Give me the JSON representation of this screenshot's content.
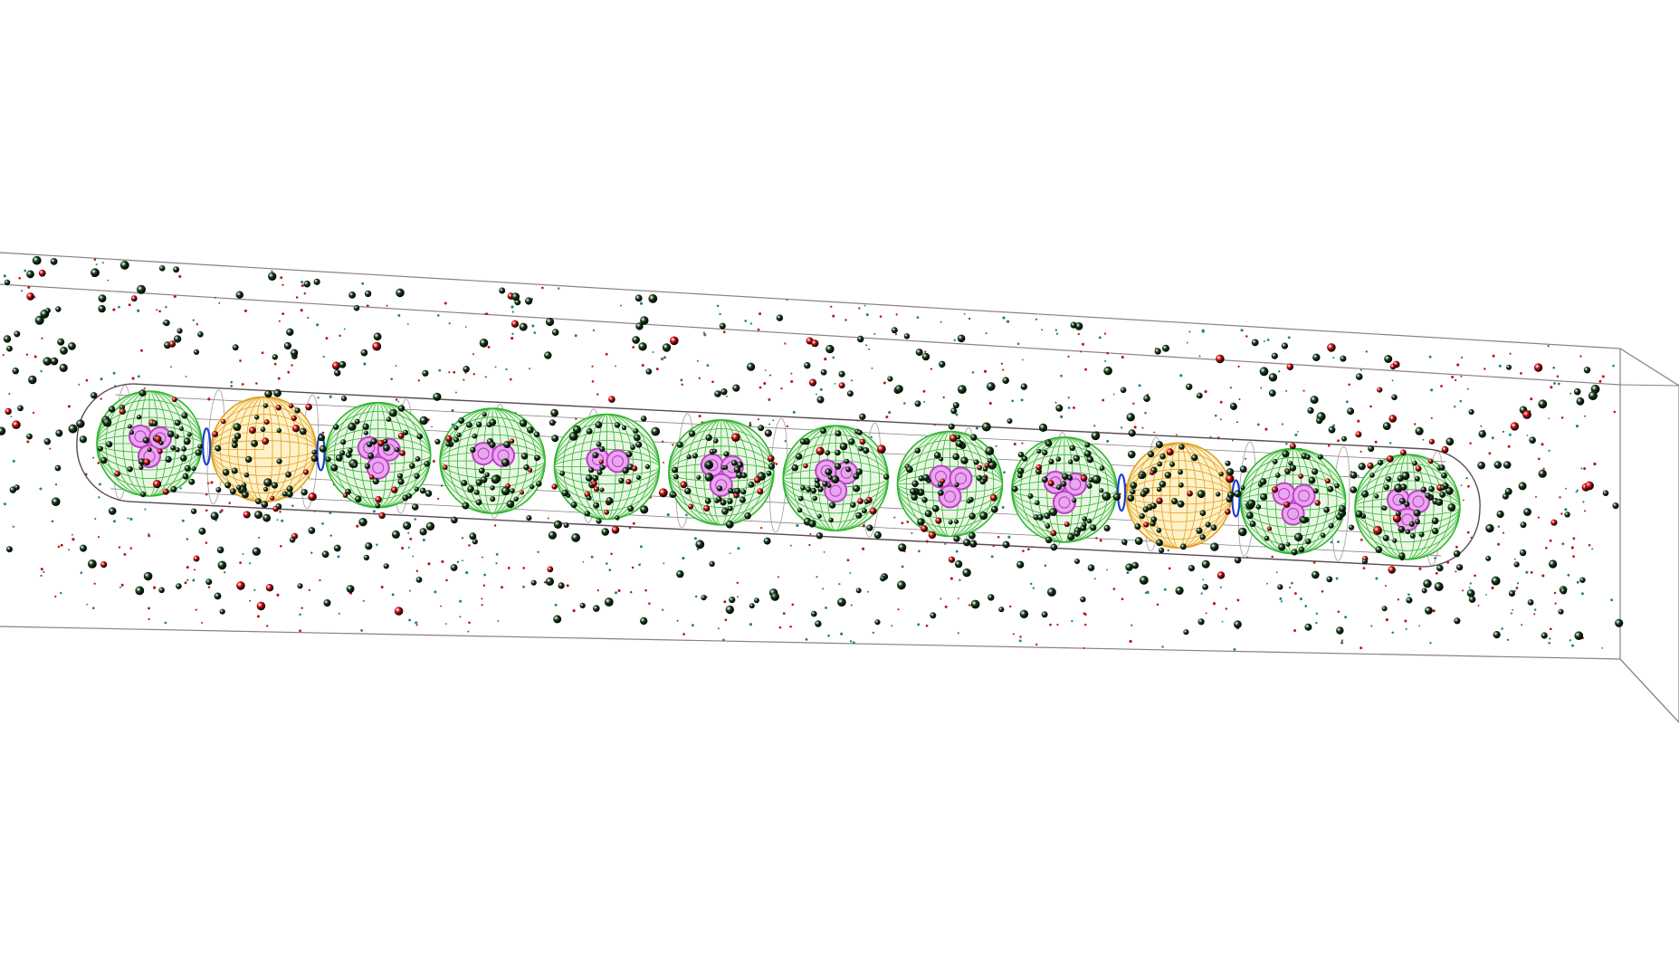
{
  "scene": {
    "colors": {
      "background": "#ffffff",
      "box_edge": "#8a7f86",
      "capsule_edge": "#5a4a52",
      "membrane_ring": "#9a8f96",
      "cell_mesh": "#2fb52f",
      "cell_fill": "#e9f7e4",
      "dividing_cell_mesh": "#e0a020",
      "dividing_cell_fill": "#fff1c8",
      "nucleus": "#c040c8",
      "nucleus_fill": "#e8a8ee",
      "septum": "#2040d0",
      "molecule_dark_green": "#17401a",
      "molecule_red": "#d01010",
      "dot_red": "#b81414",
      "dot_teal": "#208080"
    },
    "cells": [
      {
        "kind": "green",
        "nuclei": 3
      },
      {
        "kind": "orange",
        "nuclei": 0
      },
      {
        "kind": "green",
        "nuclei": 3
      },
      {
        "kind": "green",
        "nuclei": 2
      },
      {
        "kind": "green",
        "nuclei": 2
      },
      {
        "kind": "green",
        "nuclei": 3
      },
      {
        "kind": "green",
        "nuclei": 3
      },
      {
        "kind": "green",
        "nuclei": 3
      },
      {
        "kind": "green",
        "nuclei": 3
      },
      {
        "kind": "orange",
        "nuclei": 0
      },
      {
        "kind": "green",
        "nuclei": 3
      },
      {
        "kind": "green",
        "nuclei": 3
      }
    ]
  }
}
